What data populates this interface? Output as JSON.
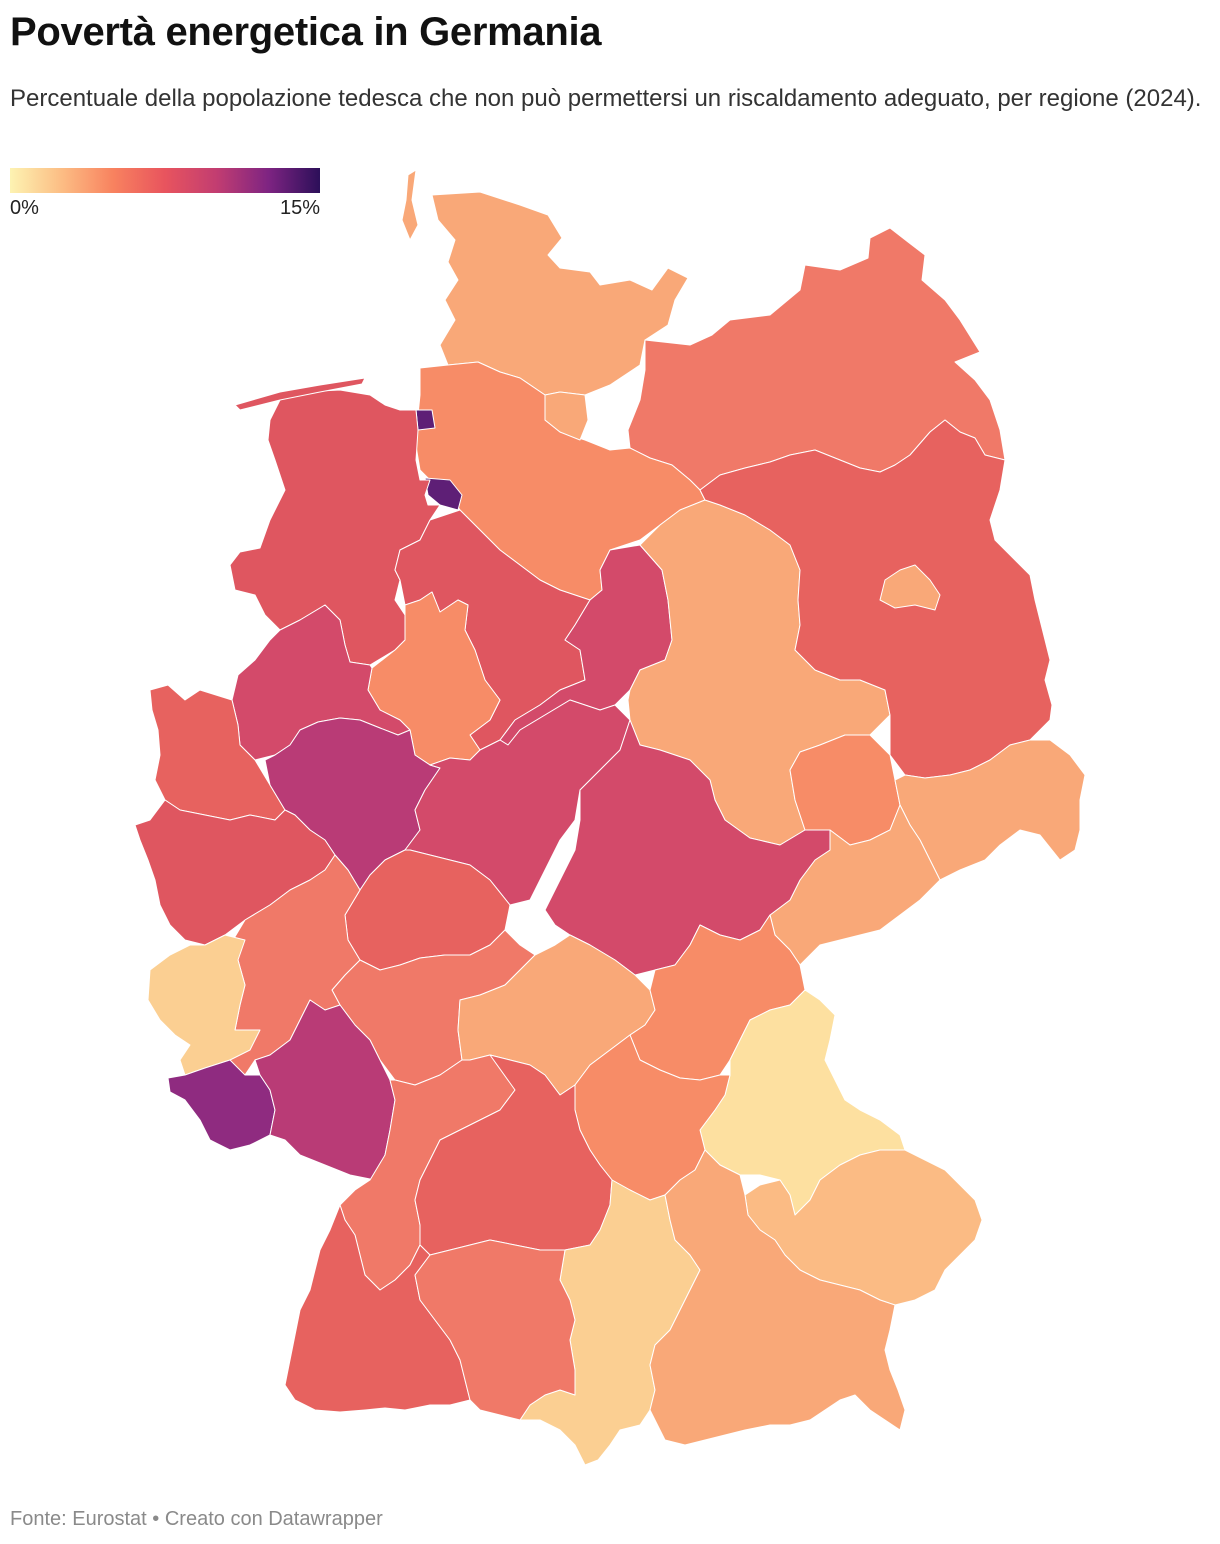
{
  "header": {
    "title": "Povertà energetica in Germania",
    "subtitle": "Percentuale della popolazione tedesca che non può permettersi un riscaldamento adeguato, per regione (2024)."
  },
  "legend": {
    "min_label": "0%",
    "max_label": "15%",
    "min_value": 0,
    "max_value": 15,
    "gradient_colors": [
      "#fdf3b2",
      "#fcbd84",
      "#f8825f",
      "#e8545e",
      "#c23d71",
      "#7e2482",
      "#2c0f59"
    ]
  },
  "map": {
    "colors": {
      "very_light": "#fde0a0",
      "light": "#fbcf92",
      "light_orange": "#fbbb84",
      "orange_light": "#f9a878",
      "orange": "#f78c67",
      "orange_red": "#f07968",
      "red": "#e7625f",
      "red_dark": "#df5660",
      "crimson": "#d34a6a",
      "magenta": "#b93b76",
      "purple": "#8f2b80",
      "dark_purple": "#5e1f76"
    }
  },
  "footer": {
    "source": "Fonte: Eurostat • Creato con Datawrapper"
  }
}
